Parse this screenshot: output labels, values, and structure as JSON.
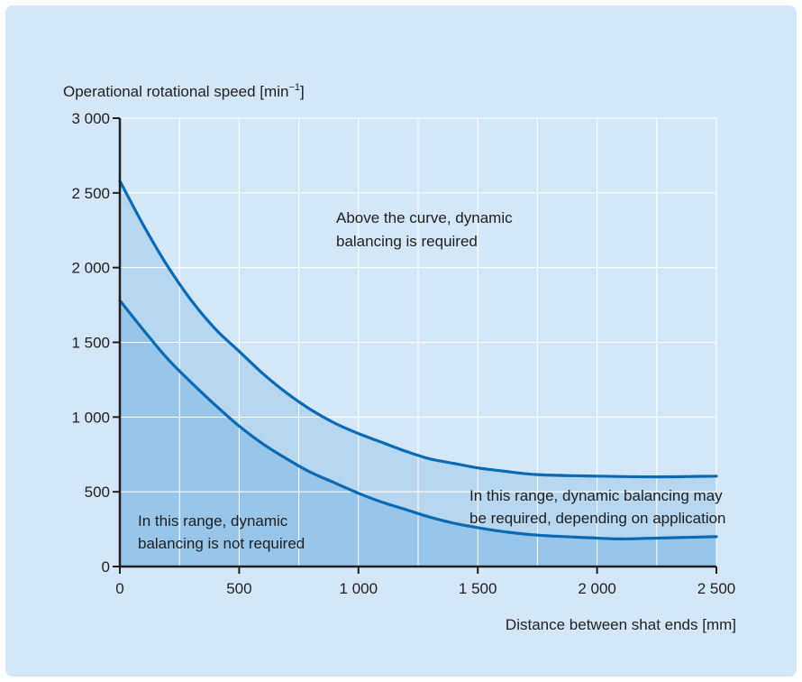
{
  "chart_data": {
    "type": "area",
    "ylabel": "Operational rotational speed [min",
    "ylabel_sup": "−1",
    "ylabel_close": "]",
    "xlabel": "Distance between shat ends [mm]",
    "xlim": [
      0,
      2500
    ],
    "ylim": [
      0,
      3000
    ],
    "x_ticks": [
      {
        "value": 0,
        "label": "0"
      },
      {
        "value": 500,
        "label": "500"
      },
      {
        "value": 1000,
        "label": "1 000"
      },
      {
        "value": 1500,
        "label": "1 500"
      },
      {
        "value": 2000,
        "label": "2 000"
      },
      {
        "value": 2500,
        "label": "2 500"
      }
    ],
    "y_ticks": [
      {
        "value": 0,
        "label": "0"
      },
      {
        "value": 500,
        "label": "500"
      },
      {
        "value": 1000,
        "label": "1 000"
      },
      {
        "value": 1500,
        "label": "1 500"
      },
      {
        "value": 2000,
        "label": "2 000"
      },
      {
        "value": 2500,
        "label": "2 500"
      },
      {
        "value": 3000,
        "label": "3 000"
      }
    ],
    "grid": true,
    "x_grid_step": 250,
    "y_grid_step": 500,
    "series": [
      {
        "color": "#0b6ab4",
        "fill": "#b7d6f0",
        "points": [
          [
            0,
            2580
          ],
          [
            100,
            2280
          ],
          [
            200,
            2010
          ],
          [
            300,
            1780
          ],
          [
            400,
            1590
          ],
          [
            500,
            1440
          ],
          [
            600,
            1290
          ],
          [
            700,
            1160
          ],
          [
            800,
            1050
          ],
          [
            900,
            960
          ],
          [
            1000,
            890
          ],
          [
            1100,
            830
          ],
          [
            1200,
            770
          ],
          [
            1300,
            720
          ],
          [
            1400,
            690
          ],
          [
            1500,
            660
          ],
          [
            1600,
            640
          ],
          [
            1750,
            615
          ],
          [
            2000,
            605
          ],
          [
            2250,
            600
          ],
          [
            2500,
            605
          ]
        ]
      },
      {
        "color": "#0b6ab4",
        "fill": "#98c6ea",
        "points": [
          [
            0,
            1780
          ],
          [
            100,
            1580
          ],
          [
            200,
            1390
          ],
          [
            300,
            1230
          ],
          [
            400,
            1080
          ],
          [
            500,
            940
          ],
          [
            600,
            820
          ],
          [
            700,
            720
          ],
          [
            800,
            630
          ],
          [
            900,
            560
          ],
          [
            1000,
            490
          ],
          [
            1100,
            430
          ],
          [
            1200,
            380
          ],
          [
            1300,
            330
          ],
          [
            1400,
            290
          ],
          [
            1500,
            260
          ],
          [
            1600,
            235
          ],
          [
            1750,
            210
          ],
          [
            2000,
            190
          ],
          [
            2100,
            185
          ],
          [
            2250,
            190
          ],
          [
            2500,
            200
          ]
        ]
      }
    ],
    "annotations": {
      "above": [
        "Above the curve, dynamic",
        "balancing is required"
      ],
      "between": [
        "In this range, dynamic balancing may",
        "be required, depending on application"
      ],
      "below": [
        "In this range, dynamic",
        "balancing is not required"
      ]
    }
  }
}
